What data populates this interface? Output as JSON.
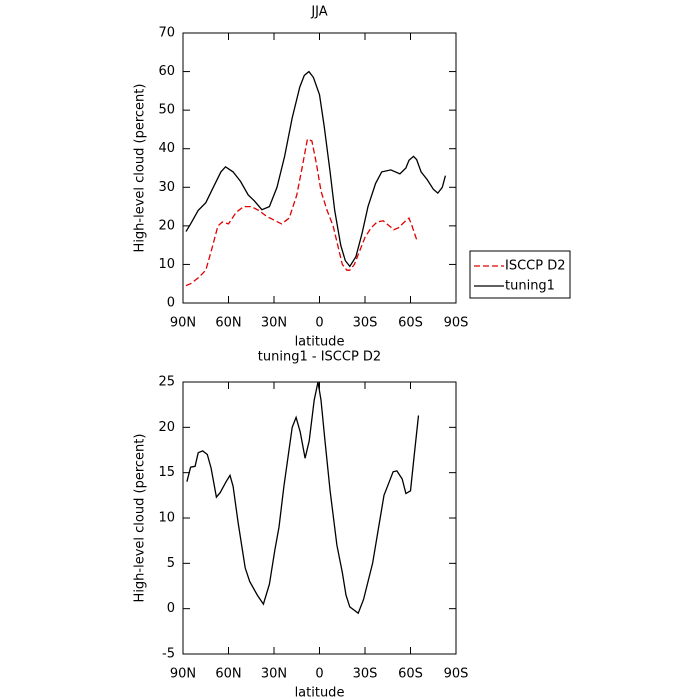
{
  "chart_data": [
    {
      "type": "line",
      "title": "JJA",
      "xlabel": "latitude",
      "ylabel": "High-level cloud (percent)",
      "xlim": [
        90,
        -90
      ],
      "xticks": [
        {
          "value": 90,
          "label": "90N"
        },
        {
          "value": 60,
          "label": "60N"
        },
        {
          "value": 30,
          "label": "30N"
        },
        0,
        {
          "value": -30,
          "label": "30S"
        },
        {
          "value": -60,
          "label": "60S"
        },
        {
          "value": -90,
          "label": "90S"
        }
      ],
      "ylim": [
        0,
        70
      ],
      "yticks": [
        0,
        10,
        20,
        30,
        40,
        50,
        60,
        70
      ],
      "legend": "right",
      "series": [
        {
          "name": "ISCCP D2",
          "color": "#e00000",
          "dash": true,
          "x": [
            88,
            85,
            80,
            75,
            71,
            67,
            64,
            60,
            55,
            50,
            45,
            40,
            35,
            30,
            25,
            20,
            15,
            11,
            8,
            5,
            2,
            -1,
            -5,
            -9,
            -12,
            -15,
            -18,
            -20,
            -23,
            -26,
            -30,
            -34,
            -38,
            -42,
            -46,
            -49,
            -52,
            -56,
            -59,
            -61,
            -64
          ],
          "values": [
            4.5,
            5,
            6.5,
            8.5,
            14,
            20,
            21,
            20.5,
            23.5,
            25,
            25,
            24,
            22.5,
            21.5,
            20.5,
            22,
            28,
            36,
            42.5,
            42,
            36,
            29,
            24,
            20,
            15,
            10,
            8.5,
            8.5,
            10,
            13,
            17,
            19.5,
            21,
            21.3,
            20,
            19,
            19.5,
            21,
            22,
            20,
            16.5
          ]
        },
        {
          "name": "tuning1",
          "color": "#000000",
          "dash": false,
          "x": [
            88,
            85,
            80,
            75,
            70,
            65,
            62,
            57,
            52,
            47,
            43,
            38,
            33,
            28,
            23,
            18,
            13,
            10,
            7,
            4,
            0,
            -3,
            -7,
            -10,
            -14,
            -17,
            -20,
            -24,
            -28,
            -32,
            -37,
            -41,
            -47,
            -53,
            -57,
            -59,
            -62,
            -64,
            -67,
            -71,
            -75,
            -78,
            -81,
            -83
          ],
          "values": [
            18.5,
            20.5,
            24,
            26,
            30,
            34,
            35.3,
            34,
            31.5,
            28,
            26.5,
            24.2,
            25,
            30,
            38,
            48,
            56,
            59,
            60,
            58.5,
            54,
            46,
            34,
            24,
            15,
            11,
            9.5,
            12,
            18,
            25,
            31,
            34,
            34.5,
            33.5,
            35,
            37,
            38,
            37.2,
            34,
            32,
            29.5,
            28.5,
            30,
            33
          ]
        }
      ]
    },
    {
      "type": "line",
      "title": "tuning1 - ISCCP D2",
      "xlabel": "latitude",
      "ylabel": "High-level cloud (percent)",
      "xlim": [
        90,
        -90
      ],
      "xticks": [
        {
          "value": 90,
          "label": "90N"
        },
        {
          "value": 60,
          "label": "60N"
        },
        {
          "value": 30,
          "label": "30N"
        },
        0,
        {
          "value": -30,
          "label": "30S"
        },
        {
          "value": -60,
          "label": "60S"
        },
        {
          "value": -90,
          "label": "90S"
        }
      ],
      "ylim": [
        -5,
        25
      ],
      "yticks": [
        -5,
        0,
        5,
        10,
        15,
        20,
        25
      ],
      "color": "#000000",
      "x": [
        87.4,
        85,
        82,
        80,
        77,
        74,
        71.5,
        68,
        65.5,
        61.6,
        59,
        57,
        53.7,
        49,
        46,
        41,
        37,
        33,
        29.4,
        26.7,
        23.5,
        18,
        15.4,
        12.7,
        9.5,
        6.8,
        3.5,
        1,
        -1,
        -3.6,
        -7,
        -11.5,
        -15,
        -17.5,
        -20,
        -25.5,
        -29,
        -35,
        -38.5,
        -42.5,
        -46,
        -48.5,
        -51,
        -54.5,
        -57,
        -60,
        -62.5,
        -65.3
      ],
      "values": [
        14,
        15.6,
        15.7,
        17.2,
        17.4,
        17,
        15.5,
        12.3,
        12.8,
        14,
        14.7,
        13.5,
        9.5,
        4.5,
        3,
        1.5,
        0.5,
        2.7,
        6.5,
        9,
        13.5,
        20,
        21.1,
        19.5,
        16.6,
        18.5,
        23,
        25,
        23,
        18.5,
        13,
        7,
        4,
        1.5,
        0.2,
        -0.5,
        1,
        5,
        8.5,
        12.5,
        14,
        15.1,
        15.2,
        14.3,
        12.7,
        13,
        17,
        21.3
      ]
    }
  ]
}
